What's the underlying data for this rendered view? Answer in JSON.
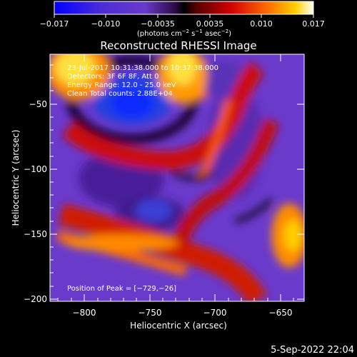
{
  "colorbar": {
    "tick_labels": [
      "−0.017",
      "−0.010",
      "−0.0035",
      "0.0035",
      "0.010",
      "0.017"
    ],
    "unit_label_main": "(photons cm",
    "unit_sup1": "−2",
    "unit_mid": " s",
    "unit_sup2": "−1",
    "unit_tail": " asec",
    "unit_sup3": "−2",
    "unit_close": ")"
  },
  "plot": {
    "title": "Reconstructed RHESSI Image",
    "xlabel": "Heliocentric X (arcsec)",
    "ylabel": "Heliocentric Y (arcsec)",
    "x_ticks": [
      "−800",
      "−750",
      "−700",
      "−650"
    ],
    "y_ticks": [
      "−50",
      "−100",
      "−150",
      "−200"
    ],
    "annotations": [
      "23-Jul-2017 10:31:38.000 to 10:37:38.000",
      "Detectors: 3F 6F 8F, Att 0",
      "Energy Range: 12.0 - 25.0 keV",
      "Clean    Total counts: 2.88E+04"
    ],
    "peak_label": "Position of Peak = [−729,−26]"
  },
  "footer": {
    "date": "5-Sep-2022 22:04"
  },
  "chart_data": {
    "type": "heatmap",
    "title": "Reconstructed RHESSI Image",
    "xlabel": "Heliocentric X (arcsec)",
    "ylabel": "Heliocentric Y (arcsec)",
    "xlim": [
      -825,
      -630
    ],
    "ylim": [
      -202,
      -12
    ],
    "colorbar_range": [
      -0.017,
      0.017
    ],
    "peak_position": [
      -729,
      -26
    ],
    "colormap": [
      "#0000ff",
      "#6a3acb",
      "#3b0a66",
      "#000000",
      "#c00000",
      "#ff8000",
      "#ffffff"
    ]
  }
}
